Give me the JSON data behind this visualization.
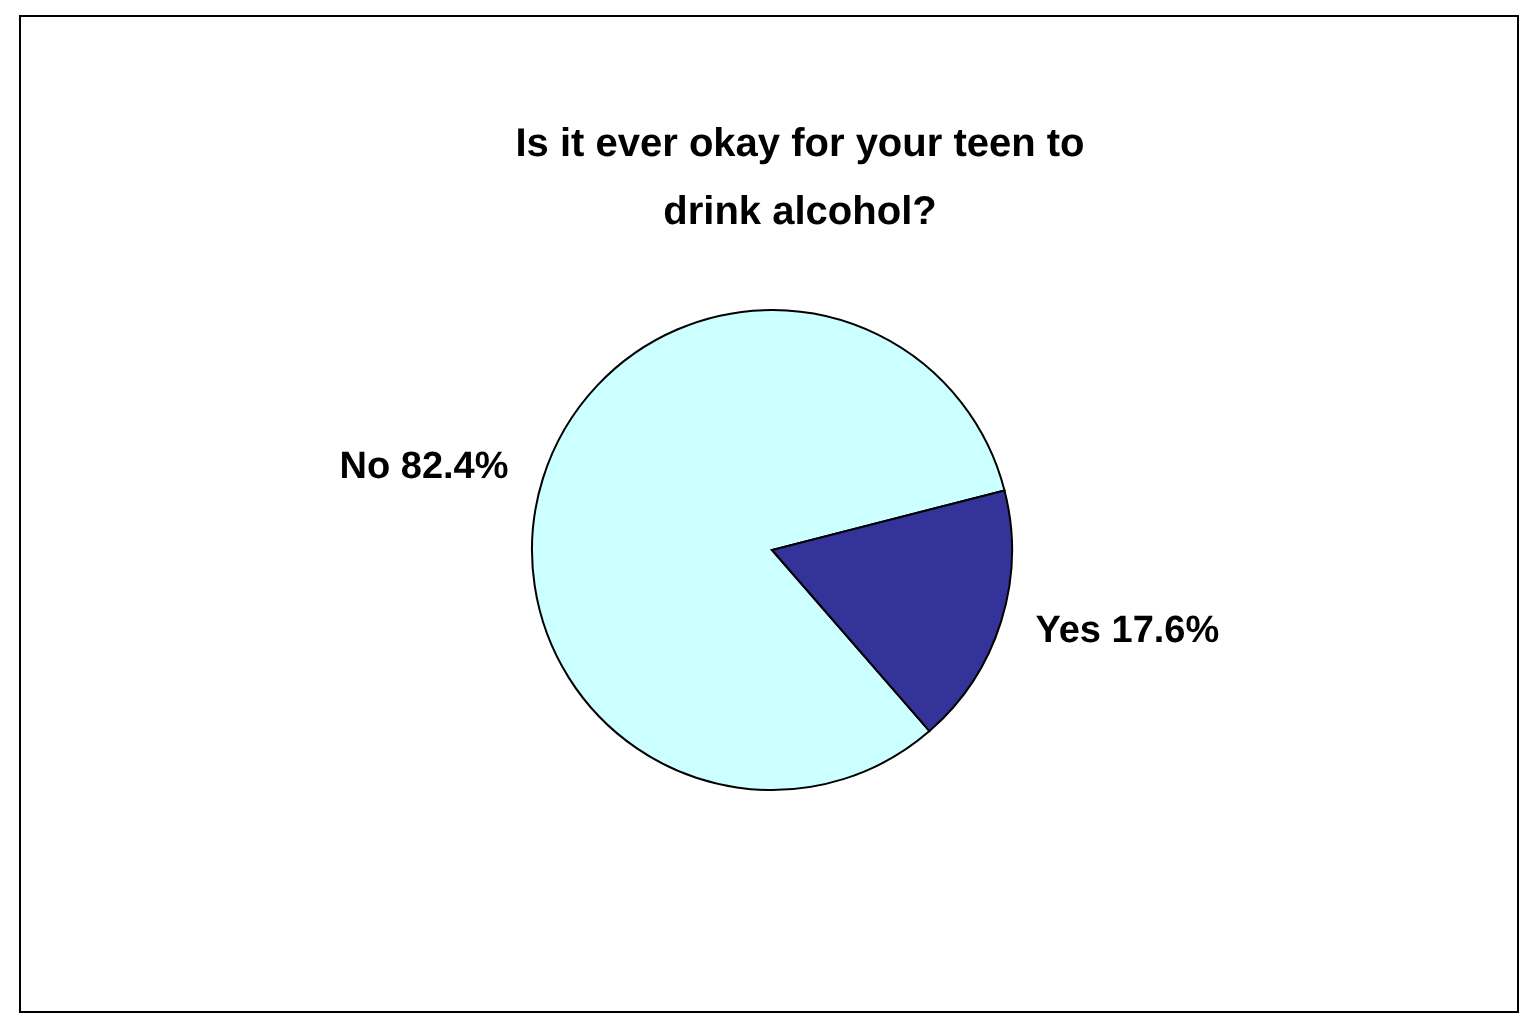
{
  "chart_data": {
    "type": "pie",
    "title": "Is it ever okay for your teen to drink alcohol?",
    "categories": [
      "No",
      "Yes"
    ],
    "values": [
      82.4,
      17.6
    ],
    "colors": [
      "#ccffff",
      "#333399"
    ],
    "value_labels": [
      "82.4%",
      "17.6%"
    ],
    "legend": false
  }
}
